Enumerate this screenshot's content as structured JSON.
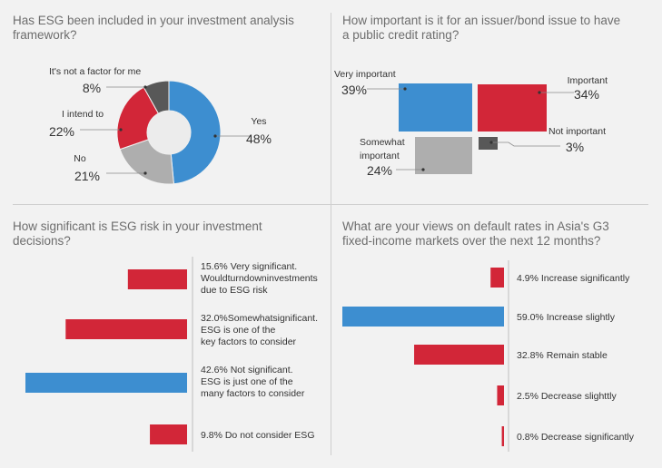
{
  "colors": {
    "blue": "#3d8ed0",
    "red": "#d22638",
    "gray": "#aeaeae",
    "darkgray": "#585858",
    "text": "#333333",
    "title": "#6d6d6d"
  },
  "q1": {
    "title": [
      "Has ESG been included in your investment analysis",
      "framework?"
    ]
  },
  "q2": {
    "title": [
      "How important is it for an issuer/bond issue to have",
      "a public credit rating?"
    ]
  },
  "q3": {
    "title": [
      "How significant is ESG risk in your investment",
      "decisions?"
    ]
  },
  "q4": {
    "title": [
      "What are your views on default rates in Asia's G3",
      "fixed-income markets over the next 12 months?"
    ]
  },
  "chart_data": [
    {
      "type": "pie",
      "style": "donut",
      "slices": [
        {
          "label": "Yes",
          "value": 48,
          "display": "48%",
          "color": "#3d8ed0"
        },
        {
          "label": "No",
          "value": 21,
          "display": "21%",
          "color": "#aeaeae"
        },
        {
          "label": "I intend to",
          "value": 22,
          "display": "22%",
          "color": "#d22638"
        },
        {
          "label": "It's not a factor for me",
          "value": 8,
          "display": "8%",
          "color": "#585858"
        }
      ]
    },
    {
      "type": "treemap",
      "items": [
        {
          "label": "Very important",
          "value": 39,
          "display": "39%",
          "color": "#3d8ed0"
        },
        {
          "label": "Important",
          "value": 34,
          "display": "34%",
          "color": "#d22638"
        },
        {
          "label": "Not important",
          "value": 3,
          "display": "3%",
          "color": "#585858"
        },
        {
          "label_lines": [
            "Somewhat",
            "important"
          ],
          "value": 24,
          "display": "24%",
          "color": "#aeaeae"
        }
      ]
    },
    {
      "type": "bar",
      "orientation": "horizontal",
      "direction": "right-to-left",
      "max": 42.6,
      "items": [
        {
          "value": 15.6,
          "lines": [
            "15.6% Very significant.",
            "Wouldturndowninvestments",
            "due to ESG risk"
          ],
          "color": "#d22638"
        },
        {
          "value": 32.0,
          "lines": [
            "32.0%Somewhatsignificant.",
            "ESG is one of the",
            "key factors to consider"
          ],
          "color": "#d22638"
        },
        {
          "value": 42.6,
          "lines": [
            "42.6% Not significant.",
            "ESG is just one of the",
            "many factors to consider"
          ],
          "color": "#3d8ed0"
        },
        {
          "value": 9.8,
          "lines": [
            "9.8% Do not consider ESG"
          ],
          "color": "#d22638"
        }
      ]
    },
    {
      "type": "bar",
      "orientation": "horizontal",
      "direction": "right-to-left",
      "max": 59.0,
      "items": [
        {
          "value": 4.9,
          "label": "4.9% Increase significantly",
          "color": "#d22638"
        },
        {
          "value": 59.0,
          "label": "59.0% Increase slightly",
          "color": "#3d8ed0"
        },
        {
          "value": 32.8,
          "label": "32.8% Remain stable",
          "color": "#d22638"
        },
        {
          "value": 2.5,
          "label": "2.5% Decrease slighttly",
          "color": "#d22638"
        },
        {
          "value": 0.8,
          "label": "0.8% Decrease significantly",
          "color": "#d22638"
        }
      ]
    }
  ]
}
